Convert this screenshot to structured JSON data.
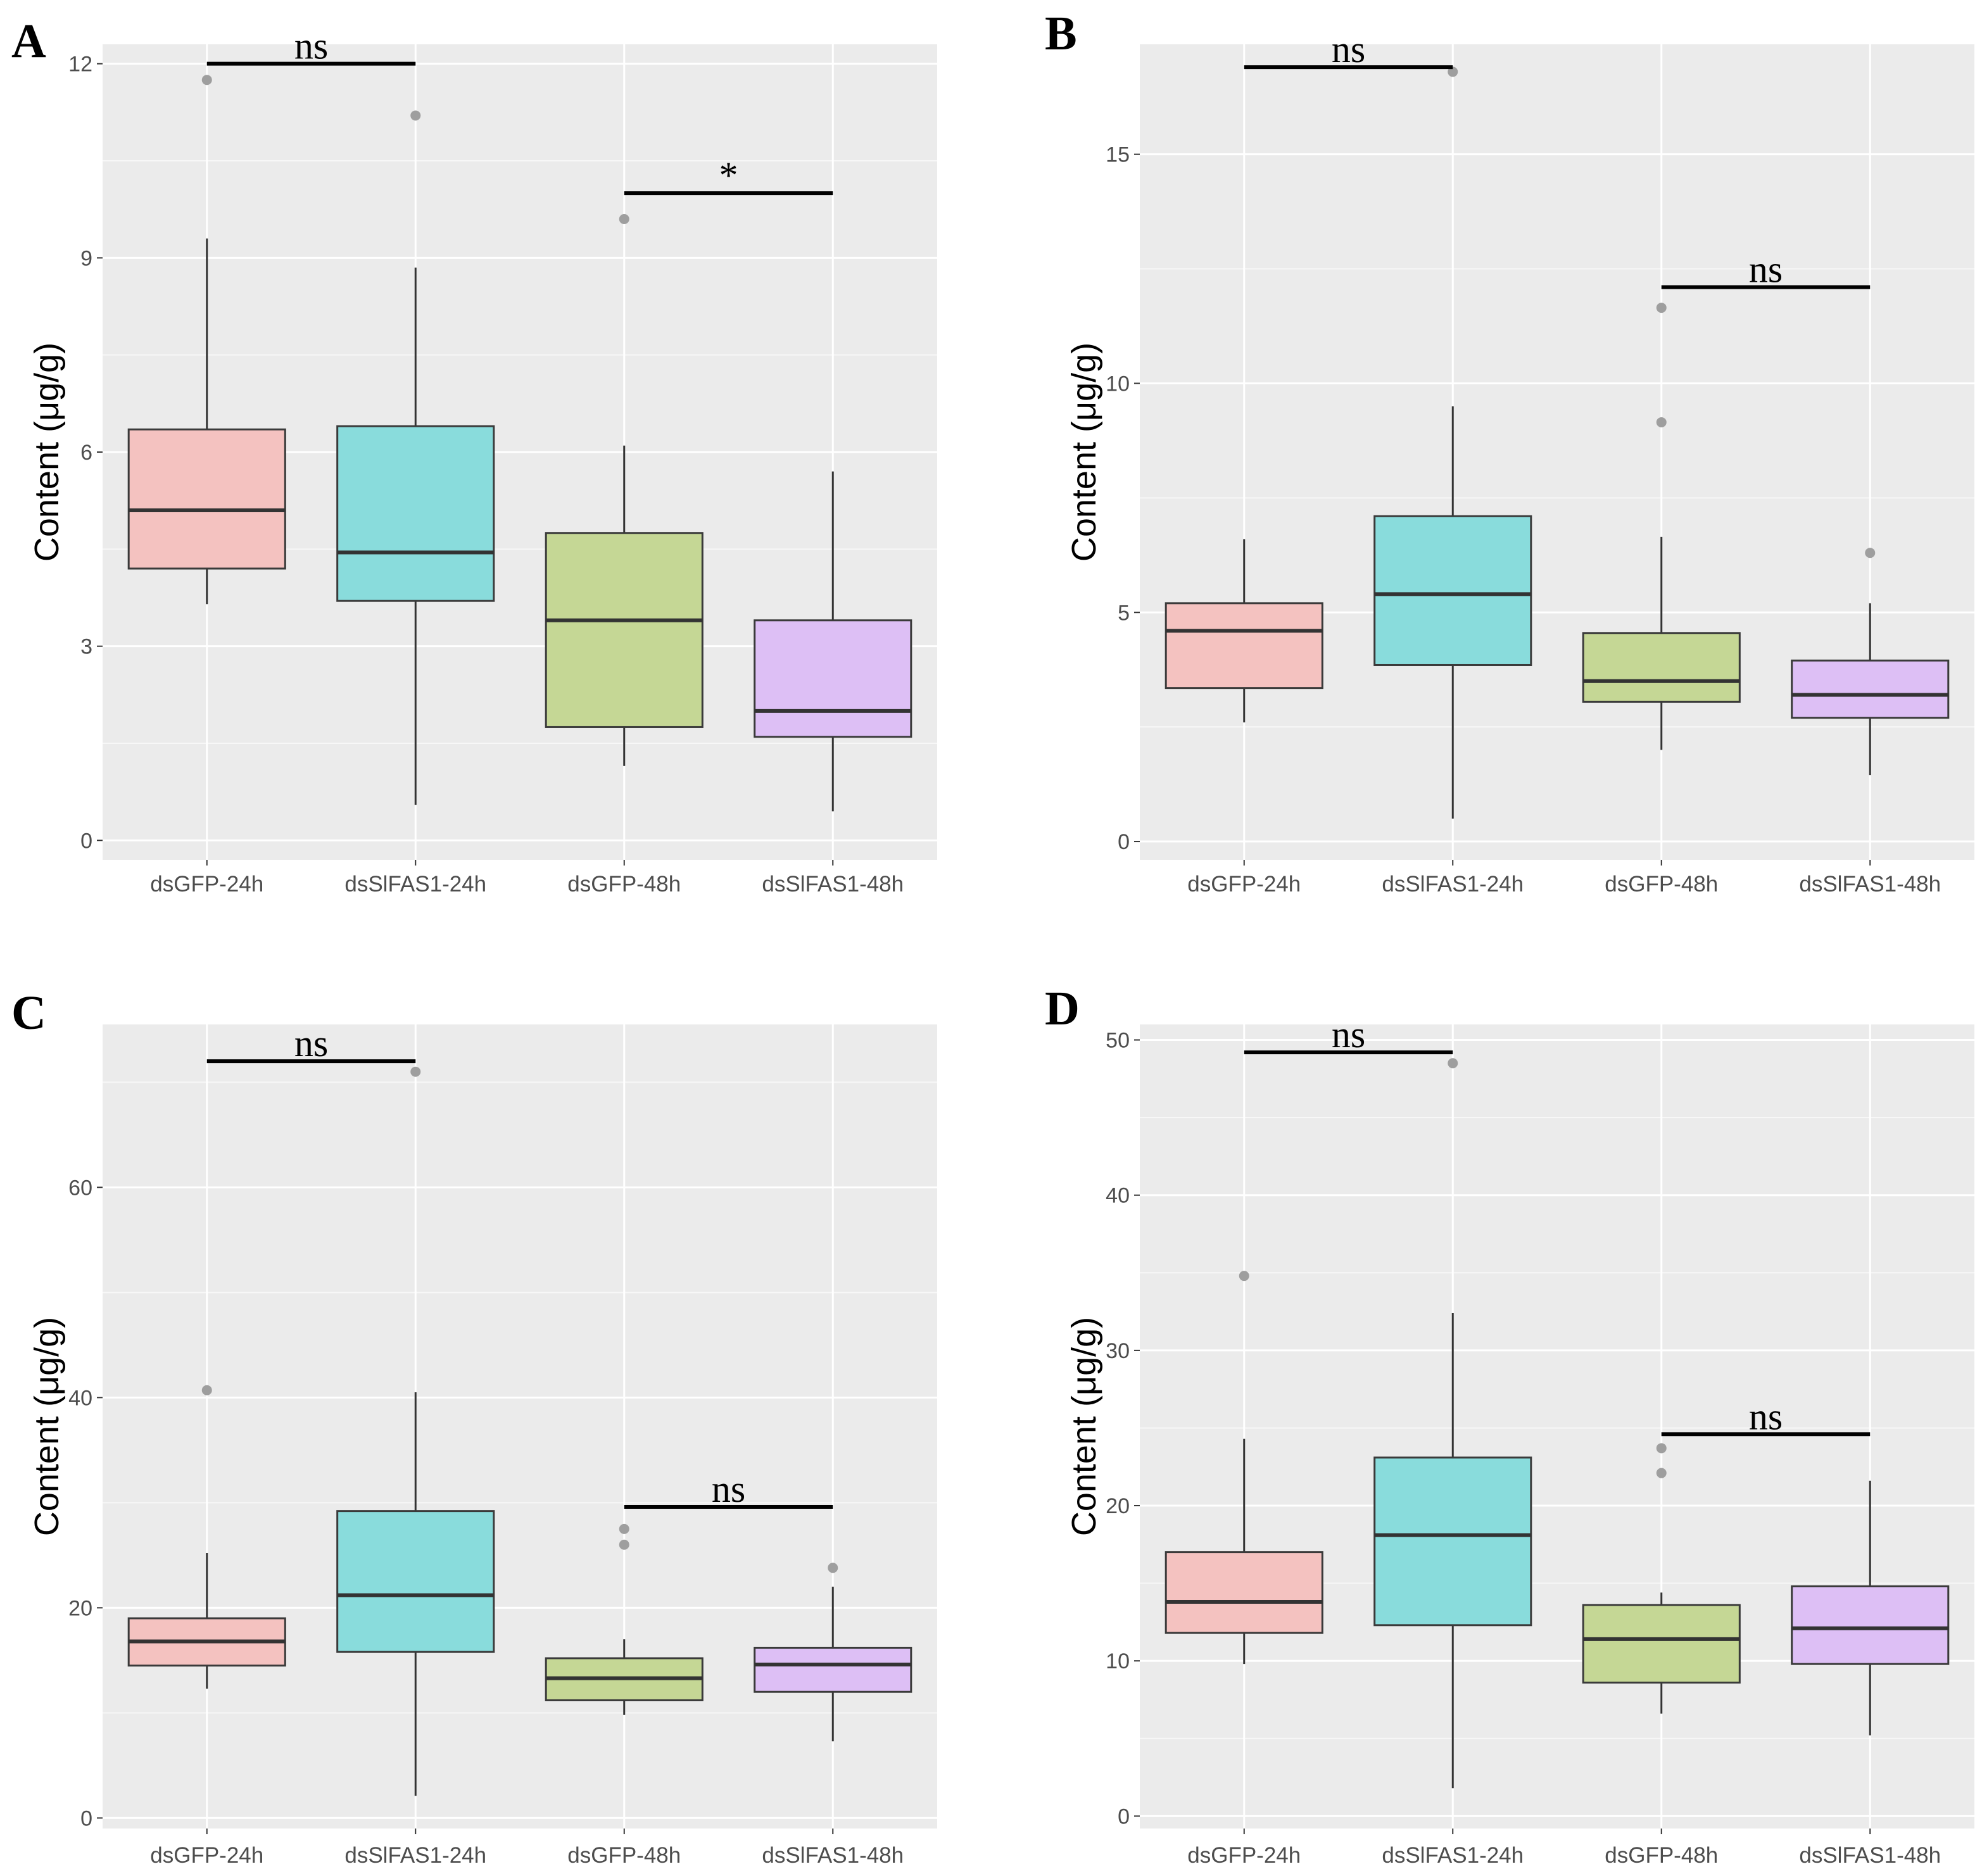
{
  "chart_data": [
    {
      "type": "box",
      "panel": "A",
      "ylabel": "Content (μg/g)",
      "ylim": [
        -0.3,
        12.3
      ],
      "yticks": [
        0,
        3,
        6,
        9,
        12
      ],
      "categories": [
        "dsGFP-24h",
        "dsSlFAS1-24h",
        "dsGFP-48h",
        "dsSlFAS1-48h"
      ],
      "colors": [
        "#f4c2c0",
        "#89dcdc",
        "#c5d795",
        "#ddbff5"
      ],
      "boxes": [
        {
          "whisker_low": 3.65,
          "q1": 4.2,
          "median": 5.1,
          "q3": 6.35,
          "whisker_high": 9.3,
          "outliers": [
            11.75
          ]
        },
        {
          "whisker_low": 0.55,
          "q1": 3.7,
          "median": 4.45,
          "q3": 6.4,
          "whisker_high": 8.85,
          "outliers": [
            11.2
          ]
        },
        {
          "whisker_low": 1.15,
          "q1": 1.75,
          "median": 3.4,
          "q3": 4.75,
          "whisker_high": 6.1,
          "outliers": [
            9.6
          ]
        },
        {
          "whisker_low": 0.45,
          "q1": 1.6,
          "median": 2.0,
          "q3": 3.4,
          "whisker_high": 5.7,
          "outliers": []
        }
      ],
      "significance": [
        {
          "from": 0,
          "to": 1,
          "y": 12.0,
          "label": "ns"
        },
        {
          "from": 2,
          "to": 3,
          "y": 10.0,
          "label": "*"
        }
      ]
    },
    {
      "type": "box",
      "panel": "B",
      "ylabel": "Content (μg/g)",
      "ylim": [
        -0.4,
        17.4
      ],
      "yticks": [
        0,
        5,
        10,
        15
      ],
      "categories": [
        "dsGFP-24h",
        "dsSlFAS1-24h",
        "dsGFP-48h",
        "dsSlFAS1-48h"
      ],
      "colors": [
        "#f4c2c0",
        "#89dcdc",
        "#c5d795",
        "#ddbff5"
      ],
      "boxes": [
        {
          "whisker_low": 2.6,
          "q1": 3.35,
          "median": 4.6,
          "q3": 5.2,
          "whisker_high": 6.6,
          "outliers": []
        },
        {
          "whisker_low": 0.5,
          "q1": 3.85,
          "median": 5.4,
          "q3": 7.1,
          "whisker_high": 9.5,
          "outliers": [
            16.8
          ]
        },
        {
          "whisker_low": 2.0,
          "q1": 3.05,
          "median": 3.5,
          "q3": 4.55,
          "whisker_high": 6.65,
          "outliers": [
            9.15,
            11.65
          ]
        },
        {
          "whisker_low": 1.45,
          "q1": 2.7,
          "median": 3.2,
          "q3": 3.95,
          "whisker_high": 5.2,
          "outliers": [
            6.3
          ]
        }
      ],
      "significance": [
        {
          "from": 0,
          "to": 1,
          "y": 16.9,
          "label": "ns"
        },
        {
          "from": 2,
          "to": 3,
          "y": 12.1,
          "label": "ns"
        }
      ]
    },
    {
      "type": "box",
      "panel": "C",
      "ylabel": "Content (μg/g)",
      "ylim": [
        -1,
        75.5
      ],
      "yticks": [
        0,
        20,
        40,
        60
      ],
      "categories": [
        "dsGFP-24h",
        "dsSlFAS1-24h",
        "dsGFP-48h",
        "dsSlFAS1-48h"
      ],
      "colors": [
        "#f4c2c0",
        "#89dcdc",
        "#c5d795",
        "#ddbff5"
      ],
      "boxes": [
        {
          "whisker_low": 12.3,
          "q1": 14.5,
          "median": 16.8,
          "q3": 19.0,
          "whisker_high": 25.2,
          "outliers": [
            40.7
          ]
        },
        {
          "whisker_low": 2.1,
          "q1": 15.8,
          "median": 21.2,
          "q3": 29.2,
          "whisker_high": 40.5,
          "outliers": [
            71.0
          ]
        },
        {
          "whisker_low": 9.8,
          "q1": 11.2,
          "median": 13.3,
          "q3": 15.2,
          "whisker_high": 17.0,
          "outliers": [
            26.0,
            27.5
          ]
        },
        {
          "whisker_low": 7.3,
          "q1": 12.0,
          "median": 14.6,
          "q3": 16.2,
          "whisker_high": 22.0,
          "outliers": [
            23.8
          ]
        }
      ],
      "significance": [
        {
          "from": 0,
          "to": 1,
          "y": 72.0,
          "label": "ns"
        },
        {
          "from": 2,
          "to": 3,
          "y": 29.6,
          "label": "ns"
        }
      ]
    },
    {
      "type": "box",
      "panel": "D",
      "ylabel": "Content (μg/g)",
      "ylim": [
        -0.8,
        51
      ],
      "yticks": [
        0,
        10,
        20,
        30,
        40,
        50
      ],
      "categories": [
        "dsGFP-24h",
        "dsSlFAS1-24h",
        "dsGFP-48h",
        "dsSlFAS1-48h"
      ],
      "colors": [
        "#f4c2c0",
        "#89dcdc",
        "#c5d795",
        "#ddbff5"
      ],
      "boxes": [
        {
          "whisker_low": 9.8,
          "q1": 11.8,
          "median": 13.8,
          "q3": 17.0,
          "whisker_high": 24.3,
          "outliers": [
            34.8
          ]
        },
        {
          "whisker_low": 1.8,
          "q1": 12.3,
          "median": 18.1,
          "q3": 23.1,
          "whisker_high": 32.4,
          "outliers": [
            48.5
          ]
        },
        {
          "whisker_low": 6.6,
          "q1": 8.6,
          "median": 11.4,
          "q3": 13.6,
          "whisker_high": 14.4,
          "outliers": [
            22.1,
            23.7
          ]
        },
        {
          "whisker_low": 5.2,
          "q1": 9.8,
          "median": 12.1,
          "q3": 14.8,
          "whisker_high": 21.6,
          "outliers": []
        }
      ],
      "significance": [
        {
          "from": 0,
          "to": 1,
          "y": 49.2,
          "label": "ns"
        },
        {
          "from": 2,
          "to": 3,
          "y": 24.6,
          "label": "ns"
        }
      ]
    }
  ]
}
